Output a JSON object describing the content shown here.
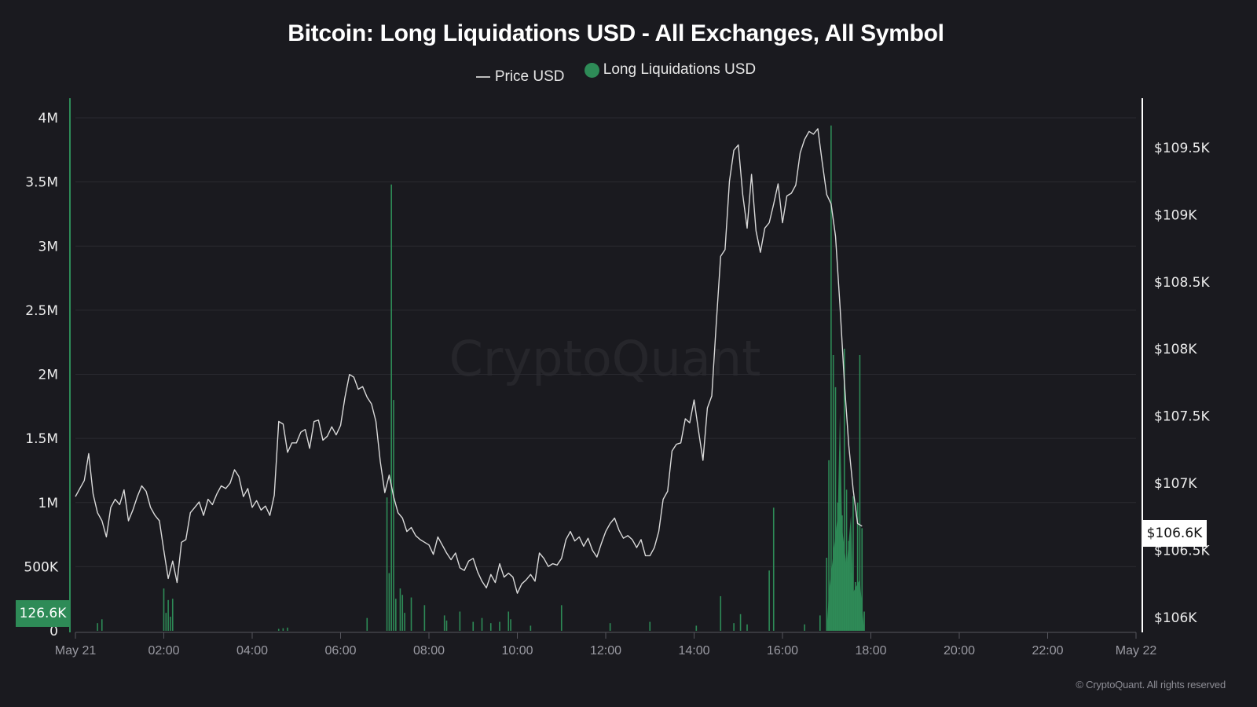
{
  "header": {
    "title": "Bitcoin: Long Liquidations USD - All Exchanges, All Symbol"
  },
  "legend": {
    "items": [
      {
        "label": "Price USD",
        "type": "line",
        "color": "#bdbdbd"
      },
      {
        "label": "Long Liquidations USD",
        "type": "dot",
        "color": "#2e8b57"
      }
    ]
  },
  "axes": {
    "left": {
      "ticks": [
        "4M",
        "3.5M",
        "3M",
        "2.5M",
        "2M",
        "1.5M",
        "1M",
        "500K",
        "0"
      ],
      "current_badge": "126.6K"
    },
    "right": {
      "ticks": [
        "$109.5K",
        "$109K",
        "$108.5K",
        "$108K",
        "$107.5K",
        "$107K",
        "$106.5K",
        "$106K"
      ],
      "current_badge": "$106.6K"
    },
    "x": {
      "ticks": [
        "May 21",
        "02:00",
        "04:00",
        "06:00",
        "08:00",
        "10:00",
        "12:00",
        "14:00",
        "16:00",
        "18:00",
        "20:00",
        "22:00",
        "May 22"
      ]
    }
  },
  "watermark": "CryptoQuant",
  "footer": {
    "copyright": "© CryptoQuant. All rights reserved"
  },
  "colors": {
    "background": "#1a1a1f",
    "liquidations": "#2e8b57",
    "price": "#d9d9d9",
    "grid": "#2a2a30"
  },
  "chart_data": {
    "type": "bar+line",
    "title": "Bitcoin: Long Liquidations USD - All Exchanges, All Symbol",
    "xlabel": "",
    "ylabel_left": "Long Liquidations USD",
    "ylabel_right": "Price USD",
    "ylim_left": [
      0,
      4000000
    ],
    "ylim_right": [
      105950,
      109900
    ],
    "grid": true,
    "legend_position": "top",
    "x_range": [
      "May 21 00:00",
      "May 22 00:00"
    ],
    "series": [
      {
        "name": "Price USD",
        "type": "line",
        "axis": "right",
        "x_hours": [
          0.0,
          0.1,
          0.2,
          0.3,
          0.4,
          0.5,
          0.6,
          0.7,
          0.8,
          0.9,
          1.0,
          1.1,
          1.2,
          1.3,
          1.4,
          1.5,
          1.6,
          1.7,
          1.8,
          1.9,
          2.0,
          2.1,
          2.2,
          2.3,
          2.4,
          2.5,
          2.6,
          2.7,
          2.8,
          2.9,
          3.0,
          3.1,
          3.2,
          3.3,
          3.4,
          3.5,
          3.6,
          3.7,
          3.8,
          3.9,
          4.0,
          4.1,
          4.2,
          4.3,
          4.4,
          4.5,
          4.6,
          4.7,
          4.8,
          4.9,
          5.0,
          5.1,
          5.2,
          5.3,
          5.4,
          5.5,
          5.6,
          5.7,
          5.8,
          5.9,
          6.0,
          6.1,
          6.2,
          6.3,
          6.4,
          6.5,
          6.6,
          6.7,
          6.8,
          6.9,
          7.0,
          7.1,
          7.2,
          7.3,
          7.4,
          7.5,
          7.6,
          7.7,
          7.8,
          7.9,
          8.0,
          8.1,
          8.2,
          8.3,
          8.4,
          8.5,
          8.6,
          8.7,
          8.8,
          8.9,
          9.0,
          9.1,
          9.2,
          9.3,
          9.4,
          9.5,
          9.6,
          9.7,
          9.8,
          9.9,
          10.0,
          10.1,
          10.2,
          10.3,
          10.4,
          10.5,
          10.6,
          10.7,
          10.8,
          10.9,
          11.0,
          11.1,
          11.2,
          11.3,
          11.4,
          11.5,
          11.6,
          11.7,
          11.8,
          11.9,
          12.0,
          12.1,
          12.2,
          12.3,
          12.4,
          12.5,
          12.6,
          12.7,
          12.8,
          12.9,
          13.0,
          13.1,
          13.2,
          13.3,
          13.4,
          13.5,
          13.6,
          13.7,
          13.8,
          13.9,
          14.0,
          14.1,
          14.2,
          14.3,
          14.4,
          14.5,
          14.6,
          14.7,
          14.8,
          14.9,
          15.0,
          15.1,
          15.2,
          15.3,
          15.4,
          15.5,
          15.6,
          15.7,
          15.8,
          15.9,
          16.0,
          16.1,
          16.2,
          16.3,
          16.4,
          16.5,
          16.6,
          16.7,
          16.8,
          16.9,
          17.0,
          17.1,
          17.2,
          17.3,
          17.4,
          17.5,
          17.6,
          17.7,
          17.8
        ],
        "values": [
          106900,
          106960,
          107020,
          107220,
          106920,
          106780,
          106720,
          106600,
          106820,
          106880,
          106840,
          106950,
          106720,
          106800,
          106900,
          106980,
          106940,
          106820,
          106760,
          106720,
          106500,
          106290,
          106420,
          106260,
          106560,
          106580,
          106780,
          106820,
          106860,
          106760,
          106880,
          106840,
          106920,
          106980,
          106960,
          107000,
          107100,
          107050,
          106900,
          106960,
          106820,
          106870,
          106800,
          106830,
          106760,
          106910,
          107460,
          107440,
          107230,
          107300,
          107300,
          107380,
          107400,
          107260,
          107460,
          107470,
          107320,
          107350,
          107420,
          107360,
          107430,
          107640,
          107810,
          107790,
          107700,
          107720,
          107640,
          107590,
          107460,
          107160,
          106930,
          107060,
          106900,
          106780,
          106740,
          106640,
          106670,
          106610,
          106580,
          106560,
          106540,
          106470,
          106600,
          106540,
          106480,
          106430,
          106480,
          106370,
          106350,
          106420,
          106440,
          106340,
          106270,
          106220,
          106320,
          106260,
          106400,
          106300,
          106330,
          106300,
          106180,
          106250,
          106280,
          106320,
          106270,
          106480,
          106440,
          106380,
          106400,
          106390,
          106440,
          106580,
          106640,
          106570,
          106600,
          106530,
          106590,
          106500,
          106450,
          106550,
          106640,
          106700,
          106740,
          106650,
          106590,
          106610,
          106580,
          106520,
          106580,
          106460,
          106460,
          106520,
          106640,
          106880,
          106940,
          107240,
          107290,
          107300,
          107480,
          107450,
          107620,
          107390,
          107170,
          107560,
          107650,
          108180,
          108690,
          108740,
          109250,
          109480,
          109520,
          109150,
          108900,
          109300,
          108880,
          108720,
          108900,
          108940,
          109080,
          109230,
          108940,
          109140,
          109160,
          109220,
          109460,
          109560,
          109620,
          109600,
          109640,
          109390,
          109150,
          109080,
          108840,
          108330,
          107750,
          107280,
          106950,
          106700,
          106680
        ],
        "last_value": 106600
      },
      {
        "name": "Long Liquidations USD",
        "type": "bar",
        "axis": "left",
        "x_hours": [
          0.5,
          0.6,
          2.0,
          2.05,
          2.1,
          2.15,
          2.2,
          4.6,
          4.7,
          4.8,
          6.6,
          7.05,
          7.1,
          7.15,
          7.2,
          7.25,
          7.35,
          7.4,
          7.45,
          7.6,
          7.9,
          8.35,
          8.4,
          8.7,
          9.0,
          9.2,
          9.4,
          9.6,
          9.8,
          9.85,
          10.3,
          11.0,
          12.1,
          13.0,
          14.05,
          14.6,
          14.9,
          15.05,
          15.2,
          15.7,
          15.8,
          16.5,
          16.85,
          17.0,
          17.05,
          17.1,
          17.15,
          17.2,
          17.25,
          17.3,
          17.35,
          17.4,
          17.45,
          17.5,
          17.55,
          17.6,
          17.65,
          17.7,
          17.75,
          17.8,
          17.85
        ],
        "values": [
          60000,
          90000,
          330000,
          140000,
          240000,
          110000,
          250000,
          15000,
          20000,
          25000,
          100000,
          1040000,
          450000,
          3480000,
          1800000,
          250000,
          330000,
          280000,
          140000,
          260000,
          200000,
          120000,
          80000,
          150000,
          70000,
          100000,
          60000,
          70000,
          150000,
          90000,
          40000,
          200000,
          60000,
          70000,
          40000,
          270000,
          60000,
          130000,
          50000,
          470000,
          960000,
          50000,
          120000,
          570000,
          1330000,
          3940000,
          2150000,
          1900000,
          1000000,
          1400000,
          900000,
          2200000,
          1100000,
          700000,
          450000,
          1050000,
          380000,
          1000000,
          2150000,
          800000,
          150000
        ],
        "current_value": 126600
      }
    ]
  }
}
